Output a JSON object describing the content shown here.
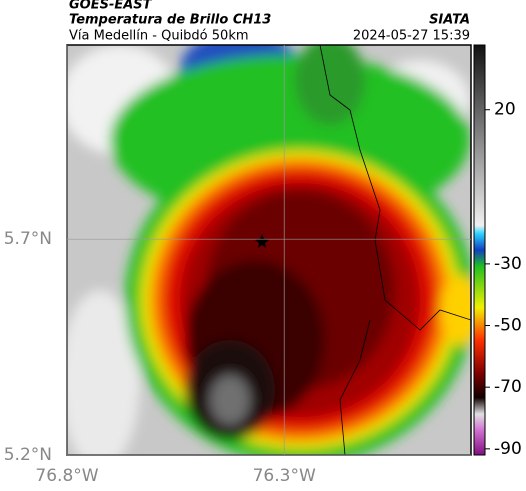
{
  "header": {
    "source": "GOES-EAST",
    "title": "Temperatura de Brillo CH13",
    "org": "SIATA",
    "subtitle": "Vía Medellín - Quibdó 50km",
    "timestamp": "2024-05-27 15:39"
  },
  "map": {
    "xlim": [
      -76.8,
      -75.87
    ],
    "ylim": [
      5.2,
      6.15
    ],
    "xticks": [
      {
        "value": -76.8,
        "label": "76.8°W"
      },
      {
        "value": -76.3,
        "label": "76.3°W"
      }
    ],
    "yticks": [
      {
        "value": 5.2,
        "label": "5.2°N"
      },
      {
        "value": 5.7,
        "label": "5.7°N"
      }
    ]
  },
  "colorbar": {
    "lim": [
      -92,
      41
    ],
    "ticks": [
      20,
      -30,
      -50,
      -70,
      -90
    ]
  }
}
